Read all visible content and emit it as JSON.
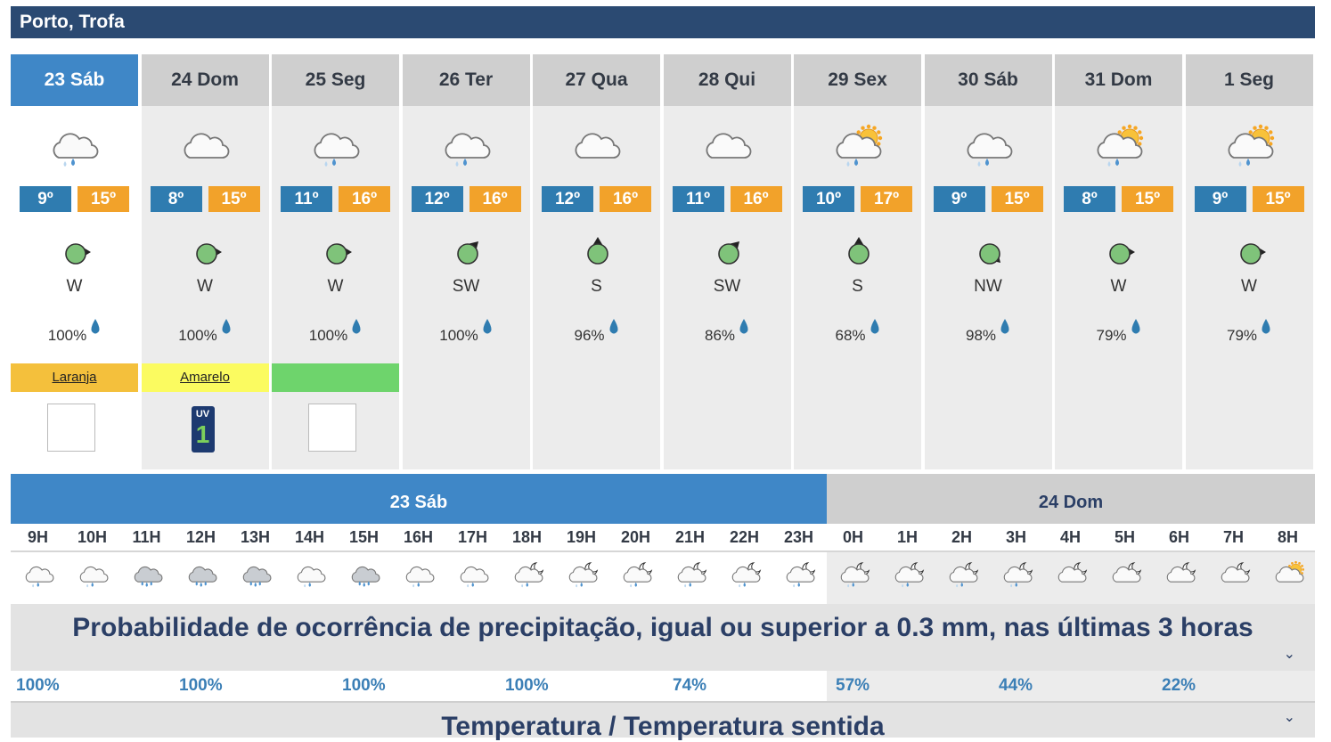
{
  "location": "Porto, Trofa",
  "colors": {
    "header_bg": "#2b4a72",
    "selected_day": "#3f87c7",
    "tmin": "#2f7cb0",
    "tmax": "#f2a22a",
    "wind_dot": "#7fc37a"
  },
  "days": [
    {
      "label": "23 Sáb",
      "icon": "rain-cloud-icon",
      "tmin": "9º",
      "tmax": "15º",
      "wind_dir": "W",
      "wind_deg": 90,
      "humidity": "100%",
      "warning": "Laranja",
      "warning_color": "#f4c03c",
      "uv": "empty",
      "selected": true
    },
    {
      "label": "24 Dom",
      "icon": "cloud-icon",
      "tmin": "8º",
      "tmax": "15º",
      "wind_dir": "W",
      "wind_deg": 90,
      "humidity": "100%",
      "warning": "Amarelo",
      "warning_color": "#fbfb60",
      "uv": "1"
    },
    {
      "label": "25 Seg",
      "icon": "rain-cloud-icon",
      "tmin": "11º",
      "tmax": "16º",
      "wind_dir": "W",
      "wind_deg": 90,
      "humidity": "100%",
      "warning": "",
      "warning_color": "#6ed46c",
      "uv": "empty"
    },
    {
      "label": "26 Ter",
      "icon": "rain-cloud-icon",
      "tmin": "12º",
      "tmax": "16º",
      "wind_dir": "SW",
      "wind_deg": 45,
      "humidity": "100%"
    },
    {
      "label": "27 Qua",
      "icon": "cloud-icon",
      "tmin": "12º",
      "tmax": "16º",
      "wind_dir": "S",
      "wind_deg": 0,
      "humidity": "96%"
    },
    {
      "label": "28 Qui",
      "icon": "cloud-icon",
      "tmin": "11º",
      "tmax": "16º",
      "wind_dir": "SW",
      "wind_deg": 45,
      "humidity": "86%"
    },
    {
      "label": "29 Sex",
      "icon": "sun-rain-cloud-icon",
      "tmin": "10º",
      "tmax": "17º",
      "wind_dir": "S",
      "wind_deg": 0,
      "humidity": "68%"
    },
    {
      "label": "30 Sáb",
      "icon": "rain-cloud-icon",
      "tmin": "9º",
      "tmax": "15º",
      "wind_dir": "NW",
      "wind_deg": 135,
      "humidity": "98%"
    },
    {
      "label": "31 Dom",
      "icon": "sun-rain-cloud-icon",
      "tmin": "8º",
      "tmax": "15º",
      "wind_dir": "W",
      "wind_deg": 90,
      "humidity": "79%"
    },
    {
      "label": "1 Seg",
      "icon": "sun-rain-cloud-icon",
      "tmin": "9º",
      "tmax": "15º",
      "wind_dir": "W",
      "wind_deg": 90,
      "humidity": "79%"
    }
  ],
  "uv_label": "UV",
  "hourly_days": [
    {
      "label": "23 Sáb"
    },
    {
      "label": "24 Dom"
    }
  ],
  "hours": [
    "9H",
    "10H",
    "11H",
    "12H",
    "13H",
    "14H",
    "15H",
    "16H",
    "17H",
    "18H",
    "19H",
    "20H",
    "21H",
    "22H",
    "23H",
    "0H",
    "1H",
    "2H",
    "3H",
    "4H",
    "5H",
    "6H",
    "7H",
    "8H"
  ],
  "hour_icons": [
    "rain-cloud-icon",
    "rain-cloud-icon",
    "heavy-rain-cloud-icon",
    "heavy-rain-cloud-icon",
    "heavy-rain-cloud-icon",
    "rain-cloud-icon",
    "heavy-rain-cloud-icon",
    "rain-cloud-icon",
    "rain-cloud-icon",
    "moon-rain-cloud-icon",
    "moon-rain-cloud-icon",
    "moon-rain-cloud-icon",
    "moon-rain-cloud-icon",
    "moon-rain-cloud-icon",
    "moon-rain-cloud-icon",
    "moon-rain-cloud-icon",
    "moon-rain-cloud-icon",
    "moon-rain-cloud-icon",
    "moon-rain-cloud-icon",
    "moon-cloud-icon",
    "moon-cloud-icon",
    "moon-cloud-icon",
    "moon-cloud-icon",
    "sun-cloud-icon"
  ],
  "precip_title": "Probabilidade de ocorrência de precipitação, igual ou superior a 0.3 mm, nas últimas 3 horas",
  "precip_values": [
    "100%",
    "100%",
    "100%",
    "100%",
    "74%",
    "57%",
    "44%",
    "22%"
  ],
  "temp_title": "Temperatura / Temperatura sentida",
  "chevron": "⌄"
}
